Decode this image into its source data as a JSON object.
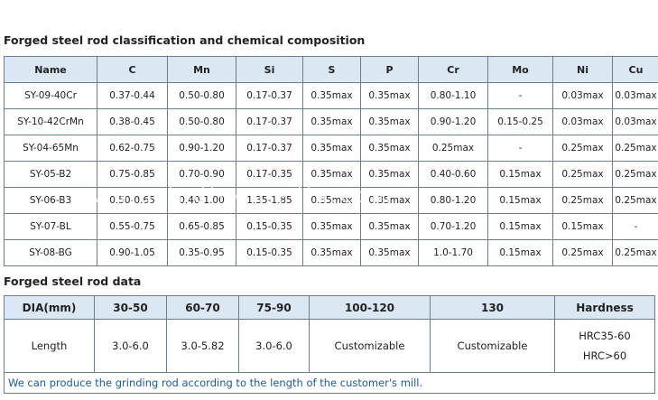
{
  "section1": {
    "title": "Forged steel rod classification and chemical composition",
    "headers": [
      "Name",
      "C",
      "Mn",
      "Si",
      "S",
      "P",
      "Cr",
      "Mo",
      "Ni",
      "Cu"
    ],
    "rows": [
      [
        "SY-09-40Cr",
        "0.37-0.44",
        "0.50-0.80",
        "0.17-0.37",
        "0.35max",
        "0.35max",
        "0.80-1.10",
        "-",
        "0.03max",
        "0.03max"
      ],
      [
        "SY-10-42CrMn",
        "0.38-0.45",
        "0.50-0.80",
        "0.17-0.37",
        "0.35max",
        "0.35max",
        "0.90-1.20",
        "0.15-0.25",
        "0.03max",
        "0.03max"
      ],
      [
        "SY-04-65Mn",
        "0.62-0.75",
        "0.90-1.20",
        "0.17-0.37",
        "0.35max",
        "0.35max",
        "0.25max",
        "-",
        "0.25max",
        "0.25max"
      ],
      [
        "SY-05-B2",
        "0.75-0.85",
        "0.70-0.90",
        "0.17-0.35",
        "0.35max",
        "0.35max",
        "0.40-0.60",
        "0.15max",
        "0.25max",
        "0.25max"
      ],
      [
        "SY-06-B3",
        "0.50-0.65",
        "0.40-1.00",
        "1.35-1.85",
        "0.35max",
        "0.35max",
        "0.80-1.20",
        "0.15max",
        "0.25max",
        "0.25max"
      ],
      [
        "SY-07-BL",
        "0.55-0.75",
        "0.65-0.85",
        "0.15-0.35",
        "0.35max",
        "0.35max",
        "0.70-1.20",
        "0.15max",
        "0.15max",
        "-"
      ],
      [
        "SY-08-BG",
        "0.90-1.05",
        "0.35-0.95",
        "0.15-0.35",
        "0.35max",
        "0.35max",
        "1.0-1.70",
        "0.15max",
        "0.25max",
        "0.25max"
      ]
    ]
  },
  "section2": {
    "title": "Forged steel rod data",
    "headers": [
      "DIA(mm)",
      "30-50",
      "60-70",
      "75-90",
      "100-120",
      "130",
      "Hardness"
    ],
    "row_label": "Length",
    "values": [
      "3.0-6.0",
      "3.0-5.82",
      "3.0-6.0",
      "Customizable",
      "Customizable"
    ],
    "hardness": [
      "HRC35-60",
      "HRC>60"
    ],
    "note": "We can produce the grinding rod according to the length of the customer's mill."
  },
  "watermark": "www.grindingmedia.com"
}
